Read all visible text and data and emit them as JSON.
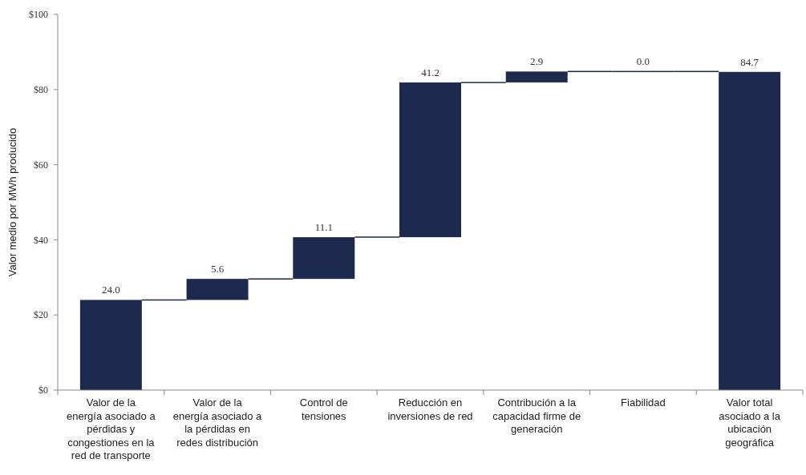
{
  "chart_data": {
    "type": "bar",
    "ylabel": "Valor medio por MWh producido",
    "categories": [
      "Valor de la energía asociado a pérdidas y congestiones en la red de transporte",
      "Valor de la energía asociado a la pérdidas en redes distribución",
      "Control de tensiones",
      "Reducción en inversiones de red",
      "Contribución a la capacidad firme de generación",
      "Fiabilidad",
      "Valor total asociado a la ubicación geográfica"
    ],
    "values": [
      24.0,
      5.6,
      11.1,
      41.2,
      2.9,
      0.0,
      84.7
    ],
    "base": [
      0,
      24.0,
      29.6,
      40.7,
      81.9,
      84.8,
      0
    ],
    "color": "#1c2b4d",
    "value_labels": [
      "24.0",
      "5.6",
      "11.1",
      "41.2",
      "2.9",
      "0.0",
      "84.7"
    ],
    "ylim": [
      0,
      100
    ],
    "yticks": [
      {
        "value": 0,
        "label": "$0"
      },
      {
        "value": 20,
        "label": "$20"
      },
      {
        "value": 40,
        "label": "$40"
      },
      {
        "value": 60,
        "label": "$60"
      },
      {
        "value": 80,
        "label": "$80"
      },
      {
        "value": 100,
        "label": "$100"
      }
    ],
    "grid": false
  }
}
